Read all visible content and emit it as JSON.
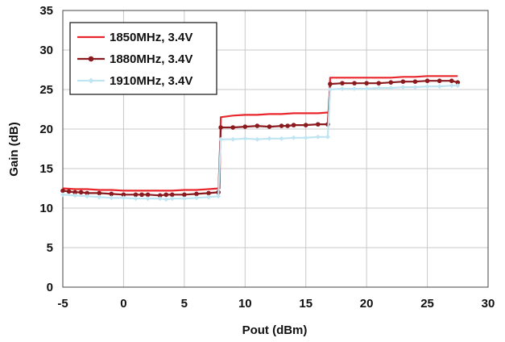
{
  "chart_data": {
    "type": "line",
    "title": "",
    "xlabel": "Pout (dBm)",
    "ylabel": "Gain (dB)",
    "xlim": [
      -5,
      30
    ],
    "ylim": [
      0,
      35
    ],
    "x_ticks": [
      "-5",
      "0",
      "5",
      "10",
      "15",
      "20",
      "25",
      "30"
    ],
    "y_ticks": [
      "0",
      "5",
      "10",
      "15",
      "20",
      "25",
      "30",
      "35"
    ],
    "grid": true,
    "legend_position": "top-left",
    "series": [
      {
        "name": "1850MHz, 3.4V",
        "color": "#e8262b",
        "marker": "none",
        "x": [
          -5,
          -4,
          -3,
          -2,
          -1,
          0,
          1,
          2,
          3,
          4,
          5,
          6,
          7,
          7.9,
          8,
          9,
          10,
          11,
          12,
          13,
          14,
          15,
          16,
          16.9,
          17,
          18,
          19,
          20,
          21,
          22,
          23,
          24,
          25,
          26,
          27,
          27.5
        ],
        "y": [
          12.5,
          12.4,
          12.4,
          12.3,
          12.3,
          12.2,
          12.2,
          12.2,
          12.2,
          12.2,
          12.3,
          12.3,
          12.4,
          12.5,
          21.5,
          21.7,
          21.8,
          21.8,
          21.9,
          21.9,
          22.0,
          22.0,
          22.0,
          22.1,
          26.5,
          26.5,
          26.5,
          26.5,
          26.5,
          26.5,
          26.6,
          26.6,
          26.7,
          26.7,
          26.7,
          26.7
        ]
      },
      {
        "name": "1880MHz, 3.4V",
        "color": "#8b1a1f",
        "marker": "circle",
        "x": [
          -5,
          -4.5,
          -4,
          -3.5,
          -3,
          -2,
          -1,
          0,
          1,
          1.5,
          2,
          3,
          3.5,
          4,
          5,
          6,
          7,
          7.8,
          8,
          9,
          10,
          11,
          12,
          13,
          13.5,
          14,
          15,
          16,
          16.8,
          17,
          18,
          19,
          20,
          21,
          22,
          23,
          24,
          25,
          26,
          27,
          27.5
        ],
        "y": [
          12.2,
          12.1,
          12.0,
          12.0,
          11.9,
          11.9,
          11.8,
          11.7,
          11.7,
          11.7,
          11.7,
          11.6,
          11.7,
          11.7,
          11.7,
          11.8,
          11.9,
          12.0,
          20.2,
          20.2,
          20.3,
          20.4,
          20.3,
          20.4,
          20.4,
          20.5,
          20.5,
          20.6,
          20.6,
          25.7,
          25.8,
          25.8,
          25.8,
          25.8,
          25.9,
          26.0,
          26.0,
          26.1,
          26.1,
          26.1,
          25.9
        ]
      },
      {
        "name": "1910MHz, 3.4V",
        "color": "#bfe4f2",
        "marker": "diamond",
        "x": [
          -5,
          -4,
          -3,
          -2,
          -1,
          0,
          1,
          2,
          3,
          3.5,
          4,
          5,
          6,
          7,
          7.8,
          8,
          9,
          10,
          11,
          12,
          13,
          14,
          15,
          16,
          16.8,
          17,
          18,
          19,
          20,
          21,
          22,
          23,
          24,
          25,
          26,
          27,
          27.5
        ],
        "y": [
          11.7,
          11.6,
          11.5,
          11.4,
          11.3,
          11.3,
          11.2,
          11.2,
          11.2,
          11.1,
          11.2,
          11.2,
          11.3,
          11.4,
          11.5,
          18.7,
          18.7,
          18.8,
          18.7,
          18.8,
          18.8,
          18.9,
          18.9,
          19.0,
          19.0,
          25.0,
          25.1,
          25.1,
          25.1,
          25.2,
          25.2,
          25.3,
          25.3,
          25.4,
          25.4,
          25.5,
          25.5
        ]
      }
    ]
  }
}
